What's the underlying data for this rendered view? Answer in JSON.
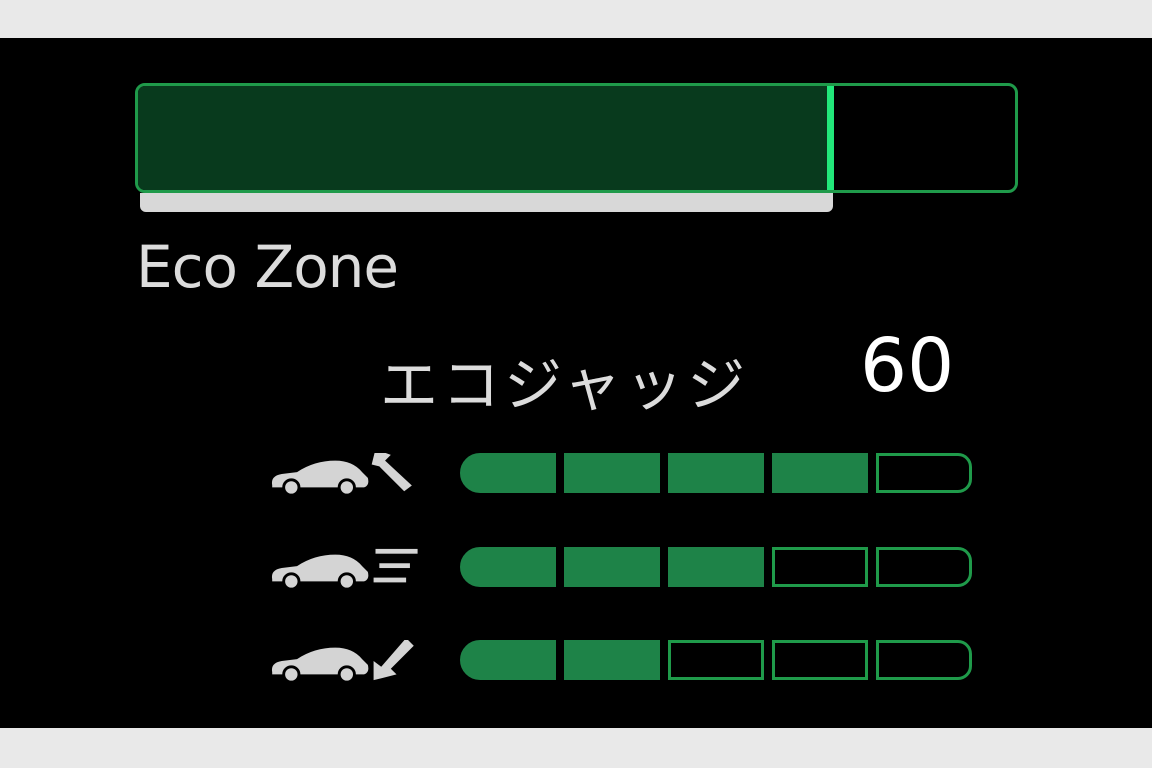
{
  "colors": {
    "accent": "#22e87a",
    "fill": "#083a1d",
    "segment_on": "#1e8348",
    "segment_border": "#1f9a4a",
    "text": "#dcdcdc"
  },
  "eco_bar": {
    "fill_fraction": 0.79
  },
  "zone_label": "Eco Zone",
  "eco_judge": {
    "label": "エコジャッジ",
    "value": "60"
  },
  "ratings": [
    {
      "name": "start",
      "icon": "car-accelerate-icon",
      "filled": 4,
      "total": 5
    },
    {
      "name": "cruise",
      "icon": "car-cruise-icon",
      "filled": 3,
      "total": 5
    },
    {
      "name": "stop",
      "icon": "car-decelerate-icon",
      "filled": 2,
      "total": 5
    }
  ]
}
